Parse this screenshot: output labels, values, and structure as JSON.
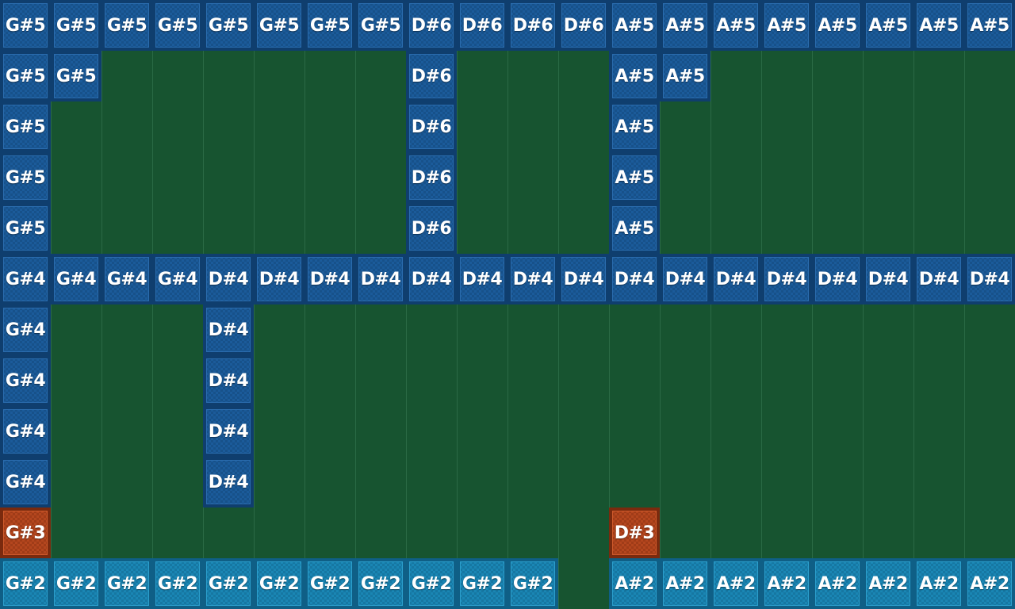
{
  "colors": {
    "background": "#175430",
    "gridline": "#2a6a45",
    "blue_tile": "#1b5b9a",
    "cyan_tile": "#1a86b4",
    "orange_tile": "#b4461e"
  },
  "grid": {
    "columns": 20,
    "rows": 12
  },
  "notes": [
    {
      "row": 0,
      "col": 0,
      "label": "G#5",
      "color": "blue"
    },
    {
      "row": 0,
      "col": 1,
      "label": "G#5",
      "color": "blue"
    },
    {
      "row": 0,
      "col": 2,
      "label": "G#5",
      "color": "blue"
    },
    {
      "row": 0,
      "col": 3,
      "label": "G#5",
      "color": "blue"
    },
    {
      "row": 0,
      "col": 4,
      "label": "G#5",
      "color": "blue"
    },
    {
      "row": 0,
      "col": 5,
      "label": "G#5",
      "color": "blue"
    },
    {
      "row": 0,
      "col": 6,
      "label": "G#5",
      "color": "blue"
    },
    {
      "row": 0,
      "col": 7,
      "label": "G#5",
      "color": "blue"
    },
    {
      "row": 0,
      "col": 8,
      "label": "D#6",
      "color": "blue"
    },
    {
      "row": 0,
      "col": 9,
      "label": "D#6",
      "color": "blue"
    },
    {
      "row": 0,
      "col": 10,
      "label": "D#6",
      "color": "blue"
    },
    {
      "row": 0,
      "col": 11,
      "label": "D#6",
      "color": "blue"
    },
    {
      "row": 0,
      "col": 12,
      "label": "A#5",
      "color": "blue"
    },
    {
      "row": 0,
      "col": 13,
      "label": "A#5",
      "color": "blue"
    },
    {
      "row": 0,
      "col": 14,
      "label": "A#5",
      "color": "blue"
    },
    {
      "row": 0,
      "col": 15,
      "label": "A#5",
      "color": "blue"
    },
    {
      "row": 0,
      "col": 16,
      "label": "A#5",
      "color": "blue"
    },
    {
      "row": 0,
      "col": 17,
      "label": "A#5",
      "color": "blue"
    },
    {
      "row": 0,
      "col": 18,
      "label": "A#5",
      "color": "blue"
    },
    {
      "row": 0,
      "col": 19,
      "label": "A#5",
      "color": "blue"
    },
    {
      "row": 1,
      "col": 0,
      "label": "G#5",
      "color": "blue"
    },
    {
      "row": 1,
      "col": 1,
      "label": "G#5",
      "color": "blue"
    },
    {
      "row": 1,
      "col": 8,
      "label": "D#6",
      "color": "blue"
    },
    {
      "row": 1,
      "col": 12,
      "label": "A#5",
      "color": "blue"
    },
    {
      "row": 1,
      "col": 13,
      "label": "A#5",
      "color": "blue"
    },
    {
      "row": 2,
      "col": 0,
      "label": "G#5",
      "color": "blue"
    },
    {
      "row": 2,
      "col": 8,
      "label": "D#6",
      "color": "blue"
    },
    {
      "row": 2,
      "col": 12,
      "label": "A#5",
      "color": "blue"
    },
    {
      "row": 3,
      "col": 0,
      "label": "G#5",
      "color": "blue"
    },
    {
      "row": 3,
      "col": 8,
      "label": "D#6",
      "color": "blue"
    },
    {
      "row": 3,
      "col": 12,
      "label": "A#5",
      "color": "blue"
    },
    {
      "row": 4,
      "col": 0,
      "label": "G#5",
      "color": "blue"
    },
    {
      "row": 4,
      "col": 8,
      "label": "D#6",
      "color": "blue"
    },
    {
      "row": 4,
      "col": 12,
      "label": "A#5",
      "color": "blue"
    },
    {
      "row": 5,
      "col": 0,
      "label": "G#4",
      "color": "blue"
    },
    {
      "row": 5,
      "col": 1,
      "label": "G#4",
      "color": "blue"
    },
    {
      "row": 5,
      "col": 2,
      "label": "G#4",
      "color": "blue"
    },
    {
      "row": 5,
      "col": 3,
      "label": "G#4",
      "color": "blue"
    },
    {
      "row": 5,
      "col": 4,
      "label": "D#4",
      "color": "blue"
    },
    {
      "row": 5,
      "col": 5,
      "label": "D#4",
      "color": "blue"
    },
    {
      "row": 5,
      "col": 6,
      "label": "D#4",
      "color": "blue"
    },
    {
      "row": 5,
      "col": 7,
      "label": "D#4",
      "color": "blue"
    },
    {
      "row": 5,
      "col": 8,
      "label": "D#4",
      "color": "blue"
    },
    {
      "row": 5,
      "col": 9,
      "label": "D#4",
      "color": "blue"
    },
    {
      "row": 5,
      "col": 10,
      "label": "D#4",
      "color": "blue"
    },
    {
      "row": 5,
      "col": 11,
      "label": "D#4",
      "color": "blue"
    },
    {
      "row": 5,
      "col": 12,
      "label": "D#4",
      "color": "blue"
    },
    {
      "row": 5,
      "col": 13,
      "label": "D#4",
      "color": "blue"
    },
    {
      "row": 5,
      "col": 14,
      "label": "D#4",
      "color": "blue"
    },
    {
      "row": 5,
      "col": 15,
      "label": "D#4",
      "color": "blue"
    },
    {
      "row": 5,
      "col": 16,
      "label": "D#4",
      "color": "blue"
    },
    {
      "row": 5,
      "col": 17,
      "label": "D#4",
      "color": "blue"
    },
    {
      "row": 5,
      "col": 18,
      "label": "D#4",
      "color": "blue"
    },
    {
      "row": 5,
      "col": 19,
      "label": "D#4",
      "color": "blue"
    },
    {
      "row": 6,
      "col": 0,
      "label": "G#4",
      "color": "blue"
    },
    {
      "row": 6,
      "col": 4,
      "label": "D#4",
      "color": "blue"
    },
    {
      "row": 7,
      "col": 0,
      "label": "G#4",
      "color": "blue"
    },
    {
      "row": 7,
      "col": 4,
      "label": "D#4",
      "color": "blue"
    },
    {
      "row": 8,
      "col": 0,
      "label": "G#4",
      "color": "blue"
    },
    {
      "row": 8,
      "col": 4,
      "label": "D#4",
      "color": "blue"
    },
    {
      "row": 9,
      "col": 0,
      "label": "G#4",
      "color": "blue"
    },
    {
      "row": 9,
      "col": 4,
      "label": "D#4",
      "color": "blue"
    },
    {
      "row": 10,
      "col": 0,
      "label": "G#3",
      "color": "orange"
    },
    {
      "row": 10,
      "col": 12,
      "label": "D#3",
      "color": "orange"
    },
    {
      "row": 11,
      "col": 0,
      "label": "G#2",
      "color": "cyan"
    },
    {
      "row": 11,
      "col": 1,
      "label": "G#2",
      "color": "cyan"
    },
    {
      "row": 11,
      "col": 2,
      "label": "G#2",
      "color": "cyan"
    },
    {
      "row": 11,
      "col": 3,
      "label": "G#2",
      "color": "cyan"
    },
    {
      "row": 11,
      "col": 4,
      "label": "G#2",
      "color": "cyan"
    },
    {
      "row": 11,
      "col": 5,
      "label": "G#2",
      "color": "cyan"
    },
    {
      "row": 11,
      "col": 6,
      "label": "G#2",
      "color": "cyan"
    },
    {
      "row": 11,
      "col": 7,
      "label": "G#2",
      "color": "cyan"
    },
    {
      "row": 11,
      "col": 8,
      "label": "G#2",
      "color": "cyan"
    },
    {
      "row": 11,
      "col": 9,
      "label": "G#2",
      "color": "cyan"
    },
    {
      "row": 11,
      "col": 10,
      "label": "G#2",
      "color": "cyan"
    },
    {
      "row": 11,
      "col": 12,
      "label": "A#2",
      "color": "cyan"
    },
    {
      "row": 11,
      "col": 13,
      "label": "A#2",
      "color": "cyan"
    },
    {
      "row": 11,
      "col": 14,
      "label": "A#2",
      "color": "cyan"
    },
    {
      "row": 11,
      "col": 15,
      "label": "A#2",
      "color": "cyan"
    },
    {
      "row": 11,
      "col": 16,
      "label": "A#2",
      "color": "cyan"
    },
    {
      "row": 11,
      "col": 17,
      "label": "A#2",
      "color": "cyan"
    },
    {
      "row": 11,
      "col": 18,
      "label": "A#2",
      "color": "cyan"
    },
    {
      "row": 11,
      "col": 19,
      "label": "A#2",
      "color": "cyan"
    }
  ]
}
